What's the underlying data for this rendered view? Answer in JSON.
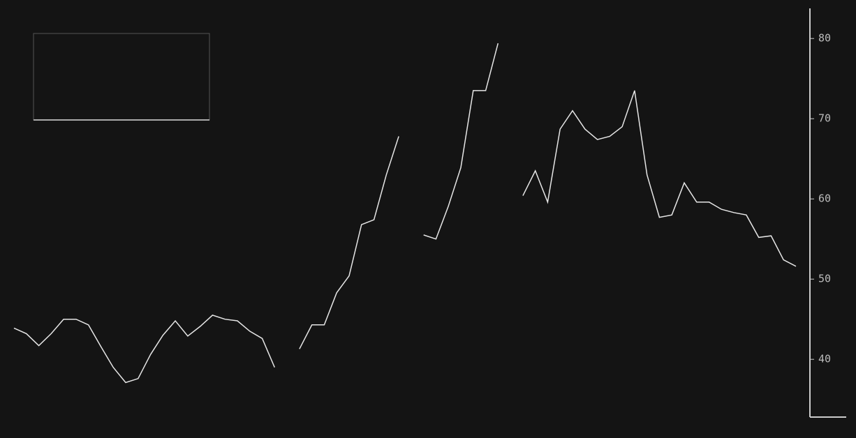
{
  "chart_data": {
    "type": "line",
    "categories": [
      null,
      null,
      null,
      null,
      null,
      null,
      null,
      null,
      null,
      null,
      null,
      null,
      null,
      null,
      null,
      null,
      null,
      null,
      null,
      null,
      null,
      null,
      null,
      null,
      null,
      null,
      null,
      null,
      null,
      null,
      null,
      null,
      null,
      null,
      null,
      null,
      null,
      null,
      null,
      null,
      null,
      null,
      null,
      null,
      null,
      null,
      null,
      null,
      null,
      null,
      null,
      null,
      null,
      null,
      null,
      null,
      null,
      null,
      null,
      null,
      null,
      null,
      null,
      null
    ],
    "series": [
      {
        "color": "#e6e6e6",
        "values": [
          43.9,
          43.2,
          41.7,
          43.2,
          45.0,
          45.0,
          44.3,
          41.6,
          39.0,
          37.1,
          37.6,
          40.6,
          43.0,
          44.8,
          42.9,
          44.1,
          45.5,
          45.0,
          44.8,
          43.5,
          42.6,
          39.0,
          null,
          41.3,
          44.3,
          44.3,
          48.3,
          50.4,
          56.8,
          57.4,
          63.0,
          67.8,
          null,
          55.5,
          55.0,
          59.1,
          63.9,
          73.5,
          73.5,
          79.4,
          null,
          60.4,
          63.5,
          59.6,
          68.7,
          71.0,
          68.7,
          67.4,
          67.8,
          69.0,
          73.5,
          63.0,
          57.7,
          58.0,
          62.0,
          59.6,
          59.6,
          58.7,
          58.3,
          58.0,
          55.2,
          55.4,
          52.4,
          51.6
        ]
      }
    ],
    "ylim": [
      32.8,
      84.8
    ],
    "yticks": [
      40,
      50,
      60,
      70,
      80
    ],
    "y_axis_side": "right"
  }
}
